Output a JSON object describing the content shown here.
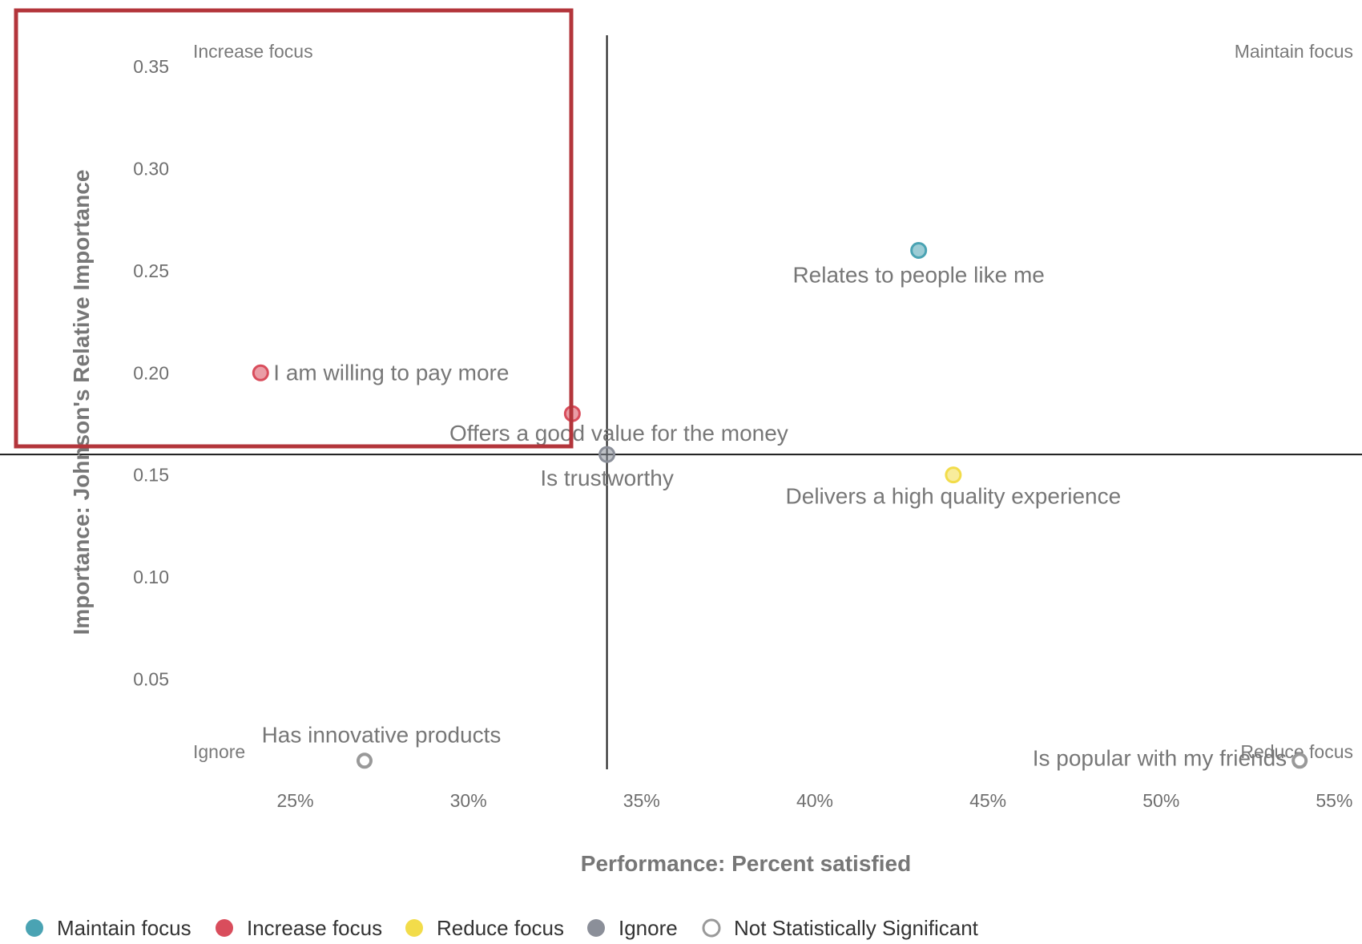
{
  "chart_data": {
    "type": "scatter",
    "title": "",
    "xlabel": "Performance: Percent satisfied",
    "ylabel": "Importance: Johnson's Relative Importance",
    "xlim": [
      0.2205,
      0.558
    ],
    "ylim": [
      0.005,
      0.365
    ],
    "x_ticks": [
      {
        "value": 0.25,
        "label": "25%"
      },
      {
        "value": 0.3,
        "label": "30%"
      },
      {
        "value": 0.35,
        "label": "35%"
      },
      {
        "value": 0.4,
        "label": "40%"
      },
      {
        "value": 0.45,
        "label": "45%"
      },
      {
        "value": 0.5,
        "label": "50%"
      },
      {
        "value": 0.55,
        "label": "55%"
      }
    ],
    "y_ticks": [
      {
        "value": 0.05,
        "label": "0.05"
      },
      {
        "value": 0.1,
        "label": "0.10"
      },
      {
        "value": 0.15,
        "label": "0.15"
      },
      {
        "value": 0.2,
        "label": "0.20"
      },
      {
        "value": 0.25,
        "label": "0.25"
      },
      {
        "value": 0.3,
        "label": "0.30"
      },
      {
        "value": 0.35,
        "label": "0.35"
      }
    ],
    "crosshair": {
      "x": 0.34,
      "y": 0.16
    },
    "quadrant_labels": {
      "top_left": "Increase focus",
      "top_right": "Maintain focus",
      "bottom_left": "Ignore",
      "bottom_right": "Reduce focus"
    },
    "points": [
      {
        "label": "I am willing to pay more",
        "x": 0.24,
        "y": 0.2,
        "category": "increase"
      },
      {
        "label": "Offers a good value for the money",
        "x": 0.33,
        "y": 0.18,
        "category": "increase"
      },
      {
        "label": "Relates to people like me",
        "x": 0.43,
        "y": 0.26,
        "category": "maintain"
      },
      {
        "label": "Is trustworthy",
        "x": 0.34,
        "y": 0.16,
        "category": "ignore"
      },
      {
        "label": "Delivers a high quality experience",
        "x": 0.44,
        "y": 0.15,
        "category": "reduce"
      },
      {
        "label": "Has innovative products",
        "x": 0.27,
        "y": 0.01,
        "category": "ns"
      },
      {
        "label": "Is popular with my friends",
        "x": 0.54,
        "y": 0.01,
        "category": "ns"
      }
    ],
    "legend_position": "bottom",
    "legend": [
      {
        "key": "maintain",
        "label": "Maintain focus",
        "color": "#4aa3b3",
        "hollow": false
      },
      {
        "key": "increase",
        "label": "Increase focus",
        "color": "#d94d5c",
        "hollow": false
      },
      {
        "key": "reduce",
        "label": "Reduce focus",
        "color": "#f2dc4a",
        "hollow": false
      },
      {
        "key": "ignore",
        "label": "Ignore",
        "color": "#8b8f99",
        "hollow": false
      },
      {
        "key": "ns",
        "label": "Not Statistically Significant",
        "color": "#999999",
        "hollow": true
      }
    ]
  },
  "highlight": {
    "color": "#b3353b"
  }
}
